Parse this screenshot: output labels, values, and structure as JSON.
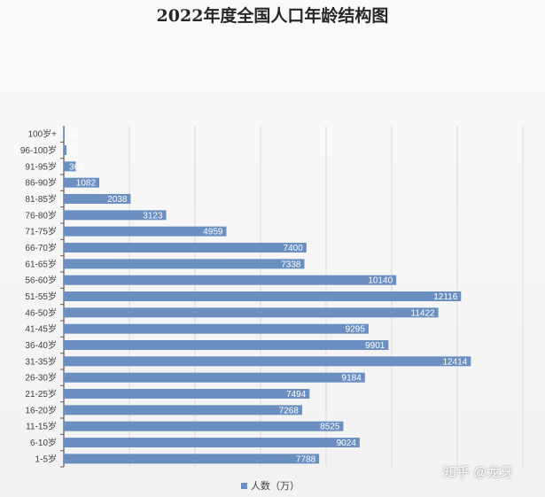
{
  "chart_data": {
    "type": "bar",
    "orientation": "horizontal",
    "title": "2022年度全国人口年龄结构图",
    "categories": [
      "1-5岁",
      "6-10岁",
      "11-15岁",
      "16-20岁",
      "21-25岁",
      "26-30岁",
      "31-35岁",
      "36-40岁",
      "41-45岁",
      "46-50岁",
      "51-55岁",
      "56-60岁",
      "61-65岁",
      "66-70岁",
      "71-75岁",
      "76-80岁",
      "81-85岁",
      "86-90岁",
      "91-95岁",
      "96-100岁",
      "100岁+"
    ],
    "series": [
      {
        "name": "人数（万）",
        "values": [
          7788,
          9024,
          8525,
          7268,
          7494,
          9184,
          12414,
          9901,
          9295,
          11422,
          12116,
          10140,
          7338,
          7400,
          4959,
          3123,
          2038,
          1082,
          365,
          81,
          11
        ],
        "data_labels": [
          "7788",
          "9024",
          "8525",
          "7268",
          "7494",
          "9184",
          "12414",
          "9901",
          "9295",
          "11422",
          "12116",
          "10140",
          "7338",
          "7400",
          "4959",
          "3123",
          "2038",
          "1082",
          "365",
          "81",
          "11"
        ]
      }
    ],
    "xlim": [
      0,
      14000
    ],
    "grid": true,
    "legend_position": "bottom",
    "bar_color": "#6b8fc1",
    "grid_color": "#d9d9d9"
  },
  "watermark": {
    "text": "知乎 @龙牙"
  }
}
